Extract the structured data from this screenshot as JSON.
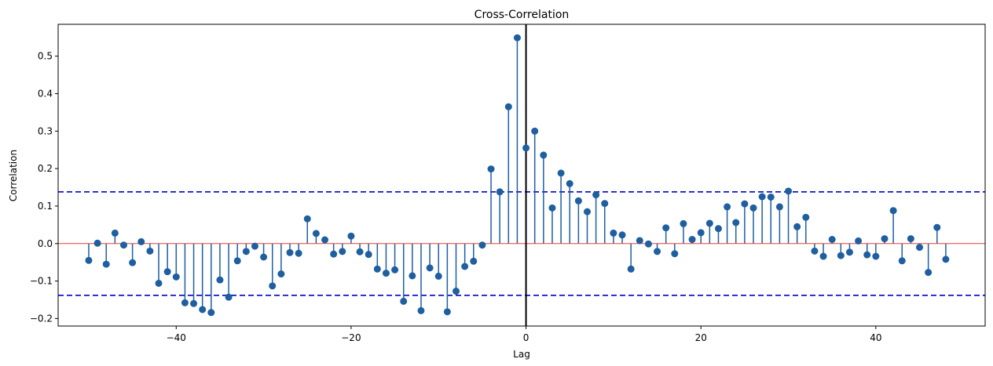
{
  "chart_data": {
    "type": "stem",
    "title": "Cross-Correlation",
    "xlabel": "Lag",
    "ylabel": "Correlation",
    "xlim": [
      -53.5,
      52.5
    ],
    "ylim": [
      -0.22,
      0.585
    ],
    "xticks": [
      -40,
      -20,
      0,
      20,
      40
    ],
    "xtick_labels": [
      "−40",
      "−20",
      "0",
      "20",
      "40"
    ],
    "yticks": [
      -0.2,
      -0.1,
      0.0,
      0.1,
      0.2,
      0.3,
      0.4,
      0.5
    ],
    "ytick_labels": [
      "−0.2",
      "−0.1",
      "0.0",
      "0.1",
      "0.2",
      "0.3",
      "0.4",
      "0.5"
    ],
    "confidence_bounds": [
      0.138,
      -0.138
    ],
    "baseline": 0.0,
    "zero_lag_line": 0,
    "lags": [
      -50,
      -49,
      -48,
      -47,
      -46,
      -45,
      -44,
      -43,
      -42,
      -41,
      -40,
      -39,
      -38,
      -37,
      -36,
      -35,
      -34,
      -33,
      -32,
      -31,
      -30,
      -29,
      -28,
      -27,
      -26,
      -25,
      -24,
      -23,
      -22,
      -21,
      -20,
      -19,
      -18,
      -17,
      -16,
      -15,
      -14,
      -13,
      -12,
      -11,
      -10,
      -9,
      -8,
      -7,
      -6,
      -5,
      -4,
      -3,
      -2,
      -1,
      0,
      1,
      2,
      3,
      4,
      5,
      6,
      7,
      8,
      9,
      10,
      11,
      12,
      13,
      14,
      15,
      16,
      17,
      18,
      19,
      20,
      21,
      22,
      23,
      24,
      25,
      26,
      27,
      28,
      29,
      30,
      31,
      32,
      33,
      34,
      35,
      36,
      37,
      38,
      39,
      40,
      41,
      42,
      43,
      44,
      45,
      46,
      47,
      48
    ],
    "values": [
      -0.045,
      0.001,
      -0.055,
      0.028,
      -0.004,
      -0.051,
      0.005,
      -0.02,
      -0.106,
      -0.075,
      -0.089,
      -0.158,
      -0.16,
      -0.176,
      -0.184,
      -0.097,
      -0.143,
      -0.046,
      -0.021,
      -0.007,
      -0.036,
      -0.113,
      -0.081,
      -0.024,
      -0.026,
      0.066,
      0.027,
      0.01,
      -0.028,
      -0.021,
      0.02,
      -0.022,
      -0.029,
      -0.068,
      -0.079,
      -0.07,
      -0.154,
      -0.086,
      -0.179,
      -0.065,
      -0.087,
      -0.182,
      -0.127,
      -0.061,
      -0.047,
      -0.004,
      0.199,
      0.138,
      0.365,
      0.549,
      0.255,
      0.3,
      0.236,
      0.095,
      0.188,
      0.16,
      0.114,
      0.085,
      0.13,
      0.107,
      0.028,
      0.023,
      -0.068,
      0.008,
      -0.001,
      -0.021,
      0.042,
      -0.027,
      0.053,
      0.011,
      0.029,
      0.054,
      0.04,
      0.098,
      0.056,
      0.106,
      0.095,
      0.125,
      0.124,
      0.098,
      0.14,
      0.045,
      0.07,
      -0.02,
      -0.034,
      0.011,
      -0.032,
      -0.023,
      0.007,
      -0.03,
      -0.034,
      0.013,
      0.088,
      -0.046,
      0.013,
      -0.01,
      -0.077,
      0.043,
      -0.042
    ],
    "colors": {
      "stem": "#1f5fa0",
      "marker": "#1f5fa0",
      "baseline": "#e0413a",
      "bounds": "#0000cc",
      "zero_line": "#000000"
    },
    "grid": false,
    "legend": "none"
  }
}
